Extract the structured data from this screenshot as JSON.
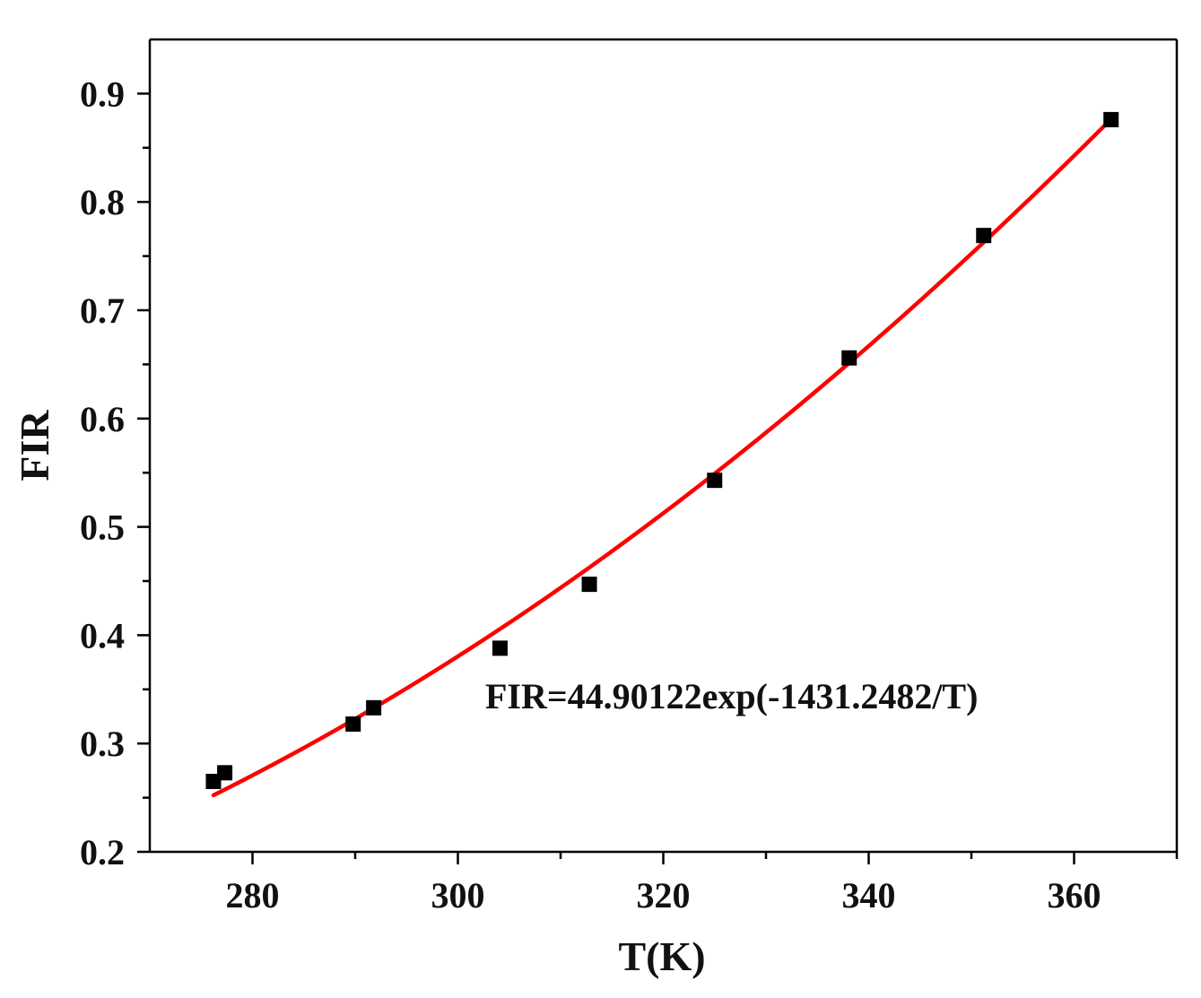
{
  "chart_data": {
    "type": "scatter",
    "xlabel": "T(K)",
    "ylabel": "FIR",
    "xlim": [
      270,
      370
    ],
    "ylim": [
      0.2,
      0.95
    ],
    "x_ticks": [
      280,
      300,
      320,
      340,
      360
    ],
    "x_tick_labels": [
      "280",
      "300",
      "320",
      "340",
      "360"
    ],
    "x_minor_ticks": [
      290,
      310,
      330,
      350,
      370
    ],
    "y_ticks": [
      0.2,
      0.3,
      0.4,
      0.5,
      0.6,
      0.7,
      0.8,
      0.9
    ],
    "y_tick_labels": [
      "0.2",
      "0.3",
      "0.4",
      "0.5",
      "0.6",
      "0.7",
      "0.8",
      "0.9"
    ],
    "y_minor_ticks": [
      0.25,
      0.35,
      0.45,
      0.55,
      0.65,
      0.75,
      0.85
    ],
    "grid": false,
    "series": [
      {
        "type": "scatter",
        "marker": "square",
        "color": "#000000",
        "points": [
          {
            "x": 276.2,
            "y": 0.265
          },
          {
            "x": 277.3,
            "y": 0.273
          },
          {
            "x": 289.8,
            "y": 0.318
          },
          {
            "x": 291.8,
            "y": 0.333
          },
          {
            "x": 304.1,
            "y": 0.388
          },
          {
            "x": 312.8,
            "y": 0.447
          },
          {
            "x": 325.0,
            "y": 0.543
          },
          {
            "x": 338.1,
            "y": 0.656
          },
          {
            "x": 351.2,
            "y": 0.769
          },
          {
            "x": 363.6,
            "y": 0.876
          }
        ]
      },
      {
        "type": "fit-line",
        "color": "#ff0000",
        "model": "exponential",
        "a": 44.90122,
        "b": -1431.2482,
        "x_range": [
          276.2,
          363.6
        ]
      }
    ],
    "annotations": [
      {
        "text": "FIR=44.90122exp(-1431.2482/T)"
      }
    ]
  }
}
